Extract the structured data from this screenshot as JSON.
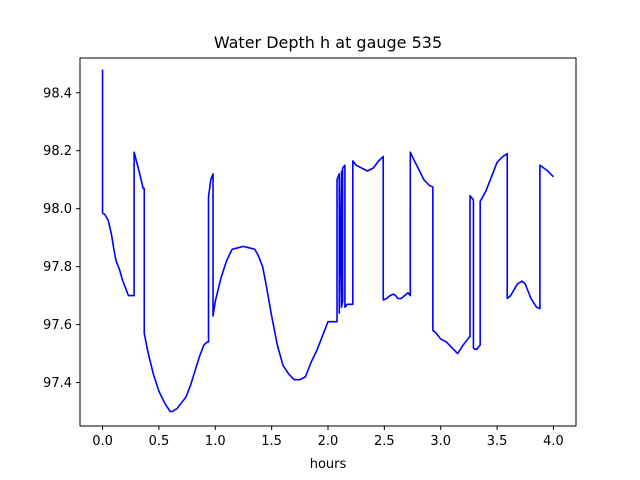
{
  "chart_data": {
    "type": "line",
    "title": "Water Depth h at gauge 535",
    "xlabel": "hours",
    "ylabel": "",
    "xlim": [
      -0.2,
      4.2
    ],
    "ylim": [
      97.25,
      98.52
    ],
    "xticks": [
      0.0,
      0.5,
      1.0,
      1.5,
      2.0,
      2.5,
      3.0,
      3.5,
      4.0
    ],
    "xtick_labels": [
      "0.0",
      "0.5",
      "1.0",
      "1.5",
      "2.0",
      "2.5",
      "3.0",
      "3.5",
      "4.0"
    ],
    "yticks": [
      97.4,
      97.6,
      97.8,
      98.0,
      98.2,
      98.4
    ],
    "ytick_labels": [
      "97.4",
      "97.6",
      "97.8",
      "98.0",
      "98.2",
      "98.4"
    ],
    "grid": false,
    "series": [
      {
        "color": "#0000ff",
        "x": [
          0.0,
          0.0,
          0.02,
          0.05,
          0.08,
          0.1,
          0.12,
          0.15,
          0.18,
          0.2,
          0.23,
          0.26,
          0.28,
          0.28,
          0.3,
          0.33,
          0.36,
          0.37,
          0.37,
          0.4,
          0.45,
          0.5,
          0.55,
          0.6,
          0.62,
          0.66,
          0.7,
          0.74,
          0.78,
          0.82,
          0.86,
          0.9,
          0.93,
          0.94,
          0.94,
          0.96,
          0.98,
          0.98,
          1.0,
          1.05,
          1.1,
          1.15,
          1.2,
          1.25,
          1.3,
          1.35,
          1.38,
          1.42,
          1.45,
          1.5,
          1.55,
          1.6,
          1.65,
          1.7,
          1.75,
          1.8,
          1.85,
          1.9,
          1.95,
          2.0,
          2.04,
          2.08,
          2.08,
          2.1,
          2.1,
          2.12,
          2.12,
          2.13,
          2.13,
          2.15,
          2.15,
          2.17,
          2.2,
          2.22,
          2.22,
          2.25,
          2.3,
          2.35,
          2.4,
          2.45,
          2.49,
          2.49,
          2.52,
          2.55,
          2.58,
          2.6,
          2.62,
          2.65,
          2.68,
          2.71,
          2.73,
          2.73,
          2.76,
          2.8,
          2.85,
          2.9,
          2.93,
          2.93,
          2.96,
          3.0,
          3.05,
          3.1,
          3.15,
          3.2,
          3.24,
          3.26,
          3.26,
          3.29,
          3.29,
          3.3,
          3.32,
          3.35,
          3.35,
          3.4,
          3.45,
          3.5,
          3.55,
          3.59,
          3.59,
          3.62,
          3.65,
          3.68,
          3.72,
          3.75,
          3.8,
          3.85,
          3.88,
          3.88,
          3.95,
          4.0
        ],
        "y": [
          98.48,
          97.985,
          97.98,
          97.96,
          97.91,
          97.86,
          97.82,
          97.79,
          97.75,
          97.73,
          97.7,
          97.7,
          97.7,
          98.195,
          98.165,
          98.12,
          98.07,
          98.07,
          97.57,
          97.51,
          97.43,
          97.37,
          97.33,
          97.3,
          97.3,
          97.31,
          97.33,
          97.35,
          97.39,
          97.44,
          97.49,
          97.53,
          97.54,
          97.54,
          98.04,
          98.1,
          98.12,
          97.63,
          97.68,
          97.76,
          97.82,
          97.86,
          97.865,
          97.87,
          97.865,
          97.86,
          97.84,
          97.8,
          97.74,
          97.63,
          97.53,
          97.46,
          97.43,
          97.41,
          97.41,
          97.42,
          97.47,
          97.51,
          97.56,
          97.61,
          97.61,
          97.61,
          98.1,
          98.12,
          97.64,
          98.13,
          97.66,
          97.68,
          98.14,
          98.15,
          97.66,
          97.67,
          97.67,
          97.67,
          98.165,
          98.15,
          98.14,
          98.13,
          98.14,
          98.165,
          98.18,
          97.685,
          97.69,
          97.7,
          97.705,
          97.7,
          97.69,
          97.69,
          97.7,
          97.71,
          97.7,
          98.195,
          98.17,
          98.14,
          98.1,
          98.08,
          98.075,
          97.58,
          97.57,
          97.55,
          97.54,
          97.52,
          97.5,
          97.53,
          97.55,
          97.56,
          98.045,
          98.03,
          97.52,
          97.515,
          97.515,
          97.53,
          98.025,
          98.06,
          98.11,
          98.16,
          98.18,
          98.19,
          97.69,
          97.7,
          97.72,
          97.74,
          97.75,
          97.74,
          97.69,
          97.66,
          97.655,
          98.15,
          98.13,
          98.11
        ]
      }
    ]
  }
}
